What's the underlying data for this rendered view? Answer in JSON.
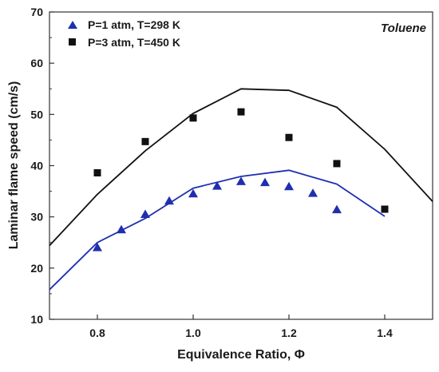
{
  "chart_data": {
    "type": "scatter",
    "xlabel": "Equivalence Ratio, Φ",
    "ylabel": "Laminar flame speed (cm/s)",
    "xlim": [
      0.7,
      1.5
    ],
    "ylim": [
      10,
      70
    ],
    "xticks": [
      0.8,
      1.0,
      1.2,
      1.4
    ],
    "xtick_labels": [
      "0.8",
      "1.0",
      "1.2",
      "1.4"
    ],
    "yticks": [
      10,
      20,
      30,
      40,
      50,
      60,
      70
    ],
    "ytick_labels": [
      "10",
      "20",
      "30",
      "40",
      "50",
      "60",
      "70"
    ],
    "annotation": "Toluene",
    "legend_position": "top-left",
    "grid": false,
    "series": [
      {
        "name": "P=1 atm, T=298 K",
        "kind": "markers",
        "marker": "triangle",
        "color": "#1f2fb0",
        "x": [
          0.8,
          0.85,
          0.9,
          0.95,
          1.0,
          1.05,
          1.1,
          1.15,
          1.2,
          1.25,
          1.3
        ],
        "y": [
          24.0,
          27.5,
          30.5,
          33.1,
          34.5,
          36.0,
          36.9,
          36.7,
          35.9,
          34.6,
          31.4
        ]
      },
      {
        "name": "P=3 atm, T=450 K",
        "kind": "markers",
        "marker": "square",
        "color": "#111111",
        "x": [
          0.8,
          0.9,
          1.0,
          1.1,
          1.2,
          1.3,
          1.4
        ],
        "y": [
          38.6,
          44.7,
          49.3,
          50.5,
          45.5,
          40.4,
          31.5
        ]
      },
      {
        "kind": "line",
        "color": "#1f2fb0",
        "x": [
          0.7,
          0.8,
          0.9,
          1.0,
          1.1,
          1.2,
          1.3,
          1.4
        ],
        "y": [
          15.8,
          25.0,
          29.7,
          35.6,
          37.9,
          39.1,
          36.4,
          30.1
        ]
      },
      {
        "kind": "line",
        "color": "#111111",
        "x": [
          0.7,
          0.8,
          0.9,
          1.0,
          1.1,
          1.2,
          1.3,
          1.4,
          1.5
        ],
        "y": [
          24.4,
          34.4,
          42.9,
          50.2,
          55.0,
          54.7,
          51.4,
          43.2,
          33.0
        ]
      }
    ]
  }
}
